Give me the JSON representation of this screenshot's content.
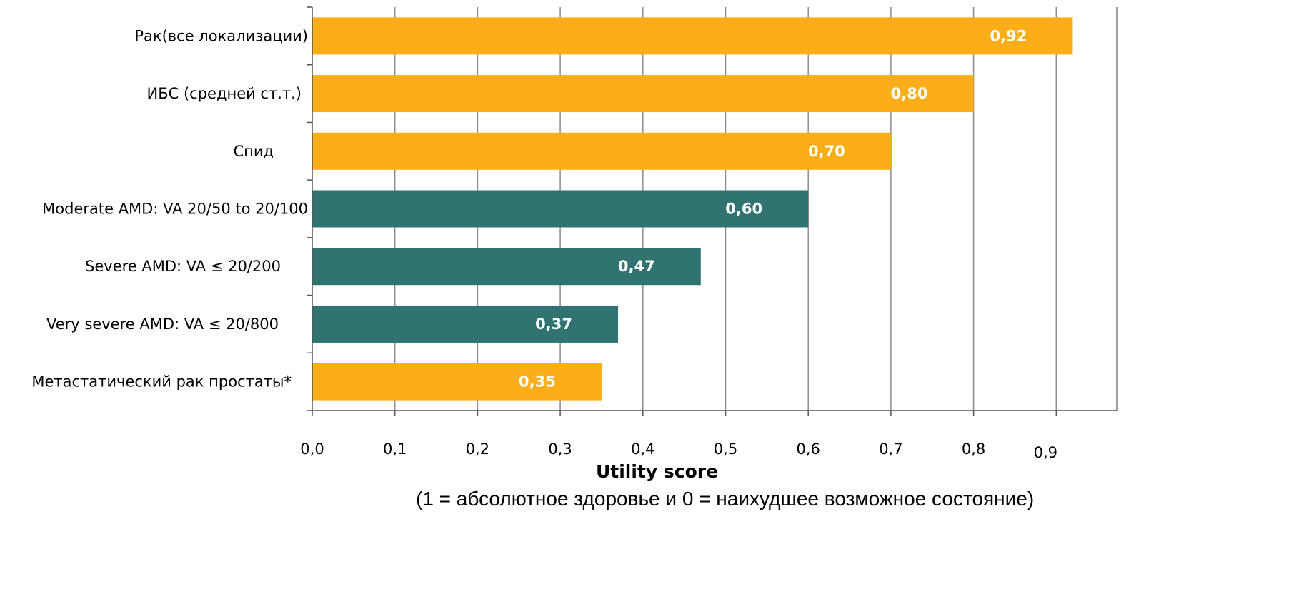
{
  "chart_data": {
    "type": "bar",
    "orientation": "horizontal",
    "categories": [
      "Рак(все локализации)",
      "ИБС (средней ст.т.)",
      "Спид",
      "Moderate AMD: VA 20/50 to 20/100",
      "Severe AMD: VA ≤ 20/200",
      "Very severe AMD: VA ≤ 20/800",
      "Метастатический рак простаты*"
    ],
    "values": [
      0.92,
      0.8,
      0.7,
      0.6,
      0.47,
      0.37,
      0.35
    ],
    "value_labels": [
      "0,92",
      "0,80",
      "0,70",
      "0,60",
      "0,47",
      "0,37",
      "0,35"
    ],
    "bar_colors": [
      "#FBAE17",
      "#FBAE17",
      "#FBAE17",
      "#307370",
      "#307370",
      "#307370",
      "#FBAE17"
    ],
    "xticks": [
      0.0,
      0.1,
      0.2,
      0.3,
      0.4,
      0.5,
      0.6,
      0.7,
      0.8,
      0.9
    ],
    "xtick_labels": [
      "0,0",
      "0,1",
      "0,2",
      "0,3",
      "0,4",
      "0,5",
      "0,6",
      "0,7",
      "0,8",
      "0,9"
    ],
    "xlim": [
      0.0,
      0.97
    ],
    "xlabel": "Utility score",
    "subtitle": "(1 = абсолютное здоровье и 0 = наихудшее возможное состояние)",
    "grid": "vertical",
    "legend": "none"
  }
}
